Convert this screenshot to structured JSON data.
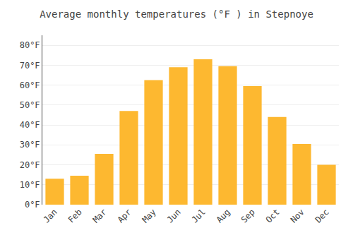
{
  "chart_data": {
    "type": "bar",
    "title": "Average monthly temperatures (°F ) in Stepnoye",
    "categories": [
      "Jan",
      "Feb",
      "Mar",
      "Apr",
      "May",
      "Jun",
      "Jul",
      "Aug",
      "Sep",
      "Oct",
      "Nov",
      "Dec"
    ],
    "values": [
      13,
      14.5,
      25.5,
      47,
      62.5,
      69,
      73,
      69.5,
      59.5,
      44,
      30.5,
      20
    ],
    "color": "#FDB830",
    "ylim": [
      0,
      85
    ],
    "yticks": [
      {
        "value": 0,
        "label": "0°F"
      },
      {
        "value": 10,
        "label": "10°F"
      },
      {
        "value": 20,
        "label": "20°F"
      },
      {
        "value": 30,
        "label": "30°F"
      },
      {
        "value": 40,
        "label": "40°F"
      },
      {
        "value": 50,
        "label": "50°F"
      },
      {
        "value": 60,
        "label": "60°F"
      },
      {
        "value": 70,
        "label": "70°F"
      },
      {
        "value": 80,
        "label": "80°F"
      }
    ],
    "grid": true
  }
}
